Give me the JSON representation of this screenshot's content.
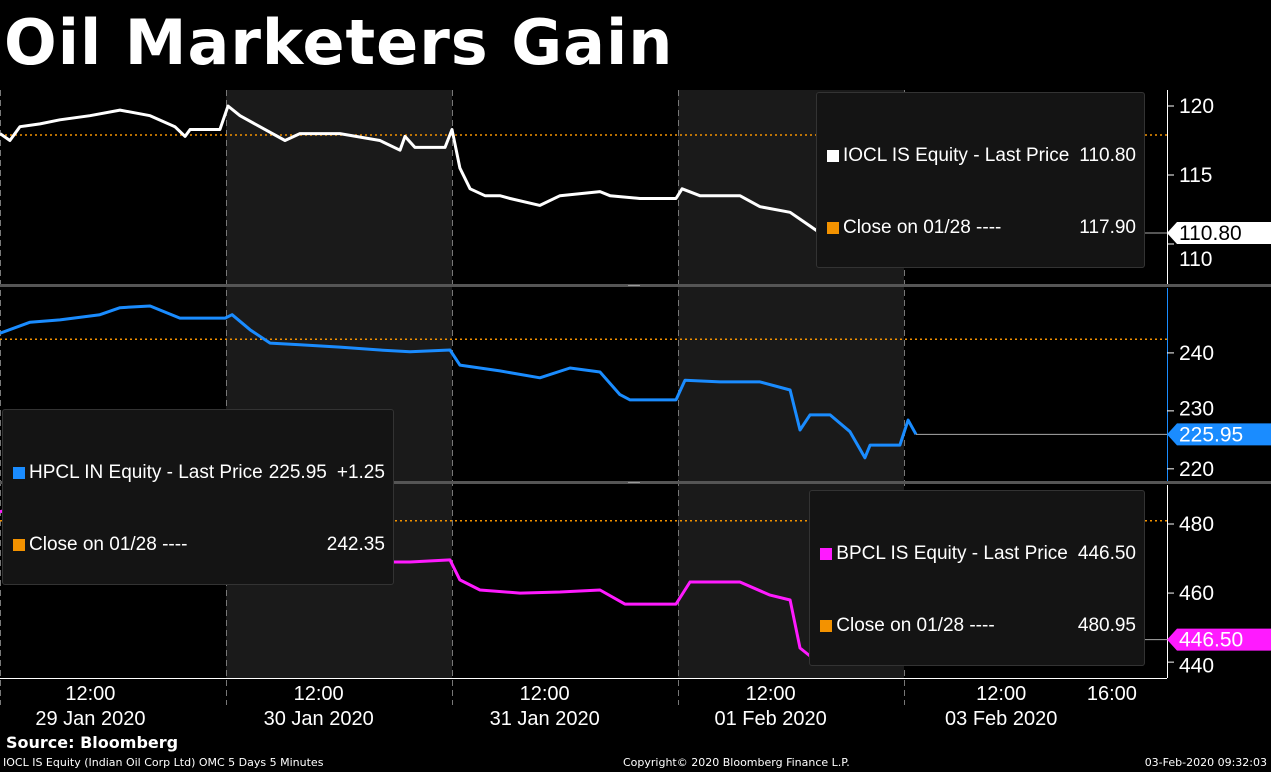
{
  "title": "Oil Marketers Gain",
  "source": "Source: Bloomberg",
  "footer": {
    "left": "IOCL IS Equity (Indian Oil Corp Ltd) OMC 5 Days 5 Minutes",
    "center": "Copyright© 2020 Bloomberg Finance L.P.",
    "right": "03-Feb-2020 09:32:03"
  },
  "colors": {
    "iocl": "#ffffff",
    "hpcl": "#1a8cff",
    "bpcl": "#ff1aff",
    "close": "#f39200",
    "shade": "#1a1a1a"
  },
  "chart_data": {
    "type": "line",
    "x_unit": "trading days from 29 Jan 2020 open",
    "x_ticks": [
      {
        "x": 0.4,
        "label": "12:00"
      },
      {
        "x": 1.41,
        "label": "12:00"
      },
      {
        "x": 2.41,
        "label": "12:00"
      },
      {
        "x": 3.41,
        "label": "12:00"
      },
      {
        "x": 4.43,
        "label": "12:00"
      },
      {
        "x": 4.92,
        "label": "16:00"
      }
    ],
    "day_labels": [
      {
        "x": 0.4,
        "label": "29 Jan 2020"
      },
      {
        "x": 1.41,
        "label": "30 Jan 2020"
      },
      {
        "x": 2.41,
        "label": "31 Jan 2020"
      },
      {
        "x": 3.41,
        "label": "01 Feb 2020"
      },
      {
        "x": 4.43,
        "label": "03 Feb 2020"
      }
    ],
    "xlim": [
      0,
      5.16
    ],
    "panels": [
      {
        "name": "IOCL IS Equity",
        "legend_label": "IOCL IS Equity - Last Price",
        "last": "110.80",
        "close_label": "Close on 01/28 ----",
        "close": 117.9,
        "close_text": "117.90",
        "change": "",
        "ylim": [
          107.1,
          121.16
        ],
        "yticks": [
          110,
          115,
          120
        ],
        "color_key": "iocl",
        "points": [
          [
            0,
            118
          ],
          [
            0.044,
            117.5
          ],
          [
            0.088,
            118.5
          ],
          [
            0.177,
            118.7
          ],
          [
            0.265,
            119
          ],
          [
            0.398,
            119.3
          ],
          [
            0.531,
            119.7
          ],
          [
            0.664,
            119.3
          ],
          [
            0.774,
            118.5
          ],
          [
            0.819,
            117.8
          ],
          [
            0.841,
            118.3
          ],
          [
            0.973,
            118.3
          ],
          [
            1.009,
            120
          ],
          [
            1.062,
            119.3
          ],
          [
            1.15,
            118.5
          ],
          [
            1.261,
            117.5
          ],
          [
            1.327,
            118
          ],
          [
            1.504,
            118
          ],
          [
            1.681,
            117.5
          ],
          [
            1.77,
            116.8
          ],
          [
            1.792,
            117.8
          ],
          [
            1.836,
            117
          ],
          [
            1.969,
            117
          ],
          [
            2.0,
            118.3
          ],
          [
            2.035,
            115.5
          ],
          [
            2.08,
            114
          ],
          [
            2.146,
            113.5
          ],
          [
            2.212,
            113.5
          ],
          [
            2.257,
            113.3
          ],
          [
            2.389,
            112.8
          ],
          [
            2.478,
            113.5
          ],
          [
            2.655,
            113.8
          ],
          [
            2.699,
            113.5
          ],
          [
            2.832,
            113.3
          ],
          [
            2.991,
            113.3
          ],
          [
            3.018,
            114
          ],
          [
            3.097,
            113.5
          ],
          [
            3.274,
            113.5
          ],
          [
            3.363,
            112.7
          ],
          [
            3.496,
            112.3
          ],
          [
            3.584,
            111.3
          ],
          [
            3.628,
            110.8
          ],
          [
            3.717,
            111
          ],
          [
            3.783,
            109.5
          ],
          [
            3.805,
            109
          ],
          [
            3.85,
            109.5
          ],
          [
            3.982,
            109.5
          ],
          [
            4.027,
            111.8
          ],
          [
            4.053,
            110.8
          ]
        ]
      },
      {
        "name": "HPCL IN Equity",
        "legend_label": "HPCL IN Equity - Last Price",
        "last": "225.95",
        "close_label": "Close on 01/28 ----",
        "close": 242.35,
        "close_text": "242.35",
        "change": "+1.25",
        "ylim": [
          217.9,
          251.2
        ],
        "yticks": [
          220,
          230,
          240
        ],
        "color_key": "hpcl",
        "points": [
          [
            0,
            243.4
          ],
          [
            0.133,
            245.3
          ],
          [
            0.265,
            245.7
          ],
          [
            0.442,
            246.6
          ],
          [
            0.531,
            247.8
          ],
          [
            0.664,
            248.1
          ],
          [
            0.796,
            246
          ],
          [
            0.996,
            246
          ],
          [
            1.027,
            246.6
          ],
          [
            1.106,
            244
          ],
          [
            1.195,
            241.7
          ],
          [
            1.327,
            241.4
          ],
          [
            1.504,
            241
          ],
          [
            1.681,
            240.5
          ],
          [
            1.814,
            240.2
          ],
          [
            1.991,
            240.5
          ],
          [
            2.035,
            237.9
          ],
          [
            2.212,
            236.9
          ],
          [
            2.389,
            235.7
          ],
          [
            2.522,
            237.4
          ],
          [
            2.655,
            236.7
          ],
          [
            2.743,
            232.8
          ],
          [
            2.788,
            231.9
          ],
          [
            2.991,
            231.9
          ],
          [
            3.031,
            235.3
          ],
          [
            3.186,
            235
          ],
          [
            3.363,
            235
          ],
          [
            3.496,
            233.6
          ],
          [
            3.54,
            226.7
          ],
          [
            3.584,
            229.3
          ],
          [
            3.673,
            229.3
          ],
          [
            3.761,
            226.4
          ],
          [
            3.827,
            221.9
          ],
          [
            3.85,
            224.1
          ],
          [
            3.982,
            224.1
          ],
          [
            4.018,
            228.4
          ],
          [
            4.053,
            225.95
          ]
        ]
      },
      {
        "name": "BPCL IS Equity",
        "legend_label": "BPCL IS Equity - Last Price",
        "last": "446.50",
        "close_label": "Close on 01/28 ----",
        "close": 480.95,
        "close_text": "480.95",
        "change": "",
        "ylim": [
          435.4,
          491.3
        ],
        "yticks": [
          440,
          460,
          480
        ],
        "color_key": "bpcl",
        "points": [
          [
            0,
            483.5
          ],
          [
            0.088,
            485.5
          ],
          [
            0.155,
            479.7
          ],
          [
            0.221,
            484.1
          ],
          [
            0.31,
            482.6
          ],
          [
            0.398,
            483.5
          ],
          [
            0.531,
            482.9
          ],
          [
            0.664,
            483.5
          ],
          [
            0.796,
            479.1
          ],
          [
            0.996,
            479.1
          ],
          [
            1.04,
            483.5
          ],
          [
            1.106,
            482.6
          ],
          [
            1.195,
            473
          ],
          [
            1.327,
            475.4
          ],
          [
            1.504,
            473.9
          ],
          [
            1.681,
            469
          ],
          [
            1.814,
            469
          ],
          [
            1.991,
            469.6
          ],
          [
            2.035,
            463.8
          ],
          [
            2.124,
            460.9
          ],
          [
            2.301,
            460
          ],
          [
            2.478,
            460.3
          ],
          [
            2.655,
            460.9
          ],
          [
            2.765,
            456.8
          ],
          [
            2.991,
            456.8
          ],
          [
            3.053,
            463.2
          ],
          [
            3.274,
            463.2
          ],
          [
            3.407,
            459.4
          ],
          [
            3.496,
            458
          ],
          [
            3.54,
            444.1
          ],
          [
            3.606,
            440.6
          ],
          [
            3.673,
            447.8
          ],
          [
            3.761,
            445.8
          ],
          [
            3.827,
            440.6
          ],
          [
            3.894,
            444.1
          ],
          [
            3.982,
            444.1
          ],
          [
            4.018,
            451
          ],
          [
            4.053,
            446.5
          ]
        ]
      }
    ]
  }
}
